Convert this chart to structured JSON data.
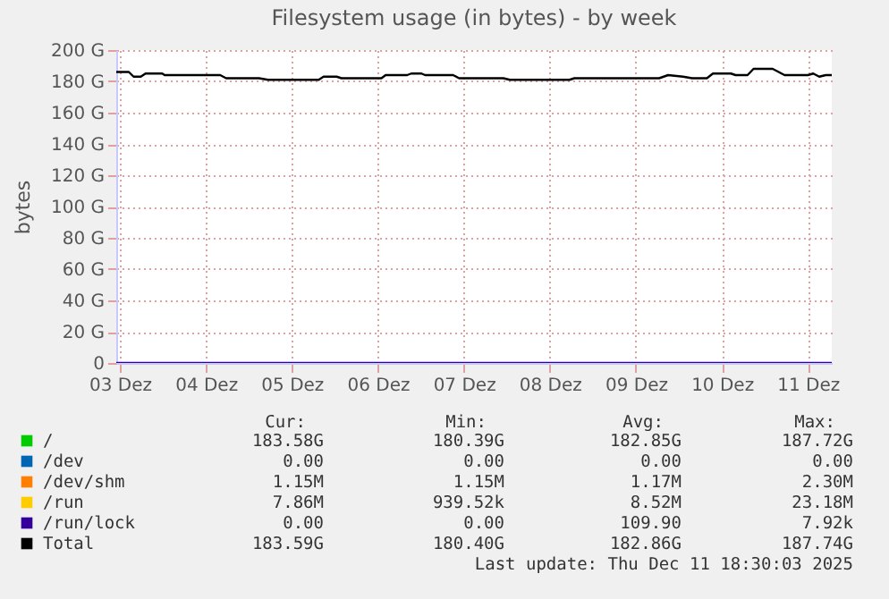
{
  "chart_data": {
    "type": "line",
    "title": "Filesystem usage (in bytes) - by week",
    "ylabel": "bytes",
    "x": [
      "2025-12-02T23:00",
      "2025-12-03T02:30",
      "2025-12-03T03:50",
      "2025-12-03T05:50",
      "2025-12-03T07:10",
      "2025-12-03T11:50",
      "2025-12-03T12:30",
      "2025-12-03T18:50",
      "2025-12-03T20:30",
      "2025-12-04T04:00",
      "2025-12-04T05:40",
      "2025-12-04T14:50",
      "2025-12-04T17:20",
      "2025-12-05T07:30",
      "2025-12-05T08:50",
      "2025-12-05T12:30",
      "2025-12-05T13:50",
      "2025-12-06T01:00",
      "2025-12-06T02:10",
      "2025-12-06T08:10",
      "2025-12-06T09:20",
      "2025-12-06T12:10",
      "2025-12-06T13:10",
      "2025-12-06T21:00",
      "2025-12-06T22:40",
      "2025-12-07T11:00",
      "2025-12-07T12:50",
      "2025-12-08T05:30",
      "2025-12-08T06:50",
      "2025-12-09T06:30",
      "2025-12-09T09:00",
      "2025-12-09T13:10",
      "2025-12-09T15:40",
      "2025-12-09T19:50",
      "2025-12-09T21:30",
      "2025-12-10T02:30",
      "2025-12-10T03:50",
      "2025-12-10T07:10",
      "2025-12-10T08:50",
      "2025-12-10T14:10",
      "2025-12-10T17:30",
      "2025-12-11T00:00",
      "2025-12-11T01:30",
      "2025-12-11T03:10",
      "2025-12-11T05:00",
      "2025-12-11T06:40"
    ],
    "series": [
      {
        "name": "/",
        "color": "#00cc00",
        "values": [
          null,
          null,
          null,
          null,
          null,
          null,
          null,
          null,
          null,
          null,
          null,
          null,
          null,
          null,
          null,
          null,
          null,
          null,
          null,
          null,
          null,
          null,
          null,
          null,
          null,
          null,
          null,
          null,
          null,
          null,
          null,
          null,
          null,
          null,
          null,
          null,
          null,
          null,
          null,
          null,
          null,
          null,
          null,
          null,
          null,
          null
        ]
      },
      {
        "name": "/dev",
        "color": "#0066b3",
        "values": [
          null,
          null,
          null,
          null,
          null,
          null,
          null,
          null,
          null,
          null,
          null,
          null,
          null,
          null,
          null,
          null,
          null,
          null,
          null,
          null,
          null,
          null,
          null,
          null,
          null,
          null,
          null,
          null,
          null,
          null,
          null,
          null,
          null,
          null,
          null,
          null,
          null,
          null,
          null,
          null,
          null,
          null,
          null,
          null,
          null,
          null
        ]
      },
      {
        "name": "/dev/shm",
        "color": "#ff8000",
        "values": [
          null,
          null,
          null,
          null,
          null,
          null,
          null,
          null,
          null,
          null,
          null,
          null,
          null,
          null,
          null,
          null,
          null,
          null,
          null,
          null,
          null,
          null,
          null,
          null,
          null,
          null,
          null,
          null,
          null,
          null,
          null,
          null,
          null,
          null,
          null,
          null,
          null,
          null,
          null,
          null,
          null,
          null,
          null,
          null,
          null,
          null
        ]
      },
      {
        "name": "/run",
        "color": "#ffcc00",
        "values": [
          null,
          null,
          null,
          null,
          null,
          null,
          null,
          null,
          null,
          null,
          null,
          null,
          null,
          null,
          null,
          null,
          null,
          null,
          null,
          null,
          null,
          null,
          null,
          null,
          null,
          null,
          null,
          null,
          null,
          null,
          null,
          null,
          null,
          null,
          null,
          null,
          null,
          null,
          null,
          null,
          null,
          null,
          null,
          null,
          null,
          null
        ]
      },
      {
        "name": "/run/lock",
        "color": "#330099",
        "x": [
          "2025-12-02T23:00",
          "2025-12-11T06:40"
        ],
        "values": [
          0,
          0
        ]
      },
      {
        "name": "Total",
        "color": "#000000",
        "values": [
          186,
          186,
          183,
          183,
          185,
          185,
          184,
          184,
          184,
          184,
          182,
          182,
          181,
          181,
          183,
          183,
          182,
          182,
          184,
          184,
          185,
          185,
          184,
          184,
          182,
          182,
          181,
          181,
          182,
          182,
          184,
          183,
          182,
          182,
          185,
          185,
          184,
          184,
          188,
          188,
          184,
          184,
          185,
          183,
          184,
          184
        ]
      }
    ],
    "xlim": [
      "2025-12-02T23:00",
      "2025-12-11T06:40"
    ],
    "xticks": [
      {
        "value": "2025-12-03T00:00",
        "label": "03 Dez"
      },
      {
        "value": "2025-12-04T00:00",
        "label": "04 Dez"
      },
      {
        "value": "2025-12-05T00:00",
        "label": "05 Dez"
      },
      {
        "value": "2025-12-06T00:00",
        "label": "06 Dez"
      },
      {
        "value": "2025-12-07T00:00",
        "label": "07 Dez"
      },
      {
        "value": "2025-12-08T00:00",
        "label": "08 Dez"
      },
      {
        "value": "2025-12-09T00:00",
        "label": "09 Dez"
      },
      {
        "value": "2025-12-10T00:00",
        "label": "10 Dez"
      },
      {
        "value": "2025-12-11T00:00",
        "label": "11 Dez"
      }
    ],
    "ylim": [
      0,
      200
    ],
    "yticks": [
      0,
      {
        "value": 20,
        "label": "20 G"
      },
      {
        "value": 40,
        "label": "40 G"
      },
      {
        "value": 60,
        "label": "60 G"
      },
      {
        "value": 80,
        "label": "80 G"
      },
      {
        "value": 100,
        "label": "100 G"
      },
      {
        "value": 120,
        "label": "120 G"
      },
      {
        "value": 140,
        "label": "140 G"
      },
      {
        "value": 160,
        "label": "160 G"
      },
      {
        "value": 180,
        "label": "180 G"
      },
      {
        "value": 200,
        "label": "200 G"
      }
    ],
    "grid": true,
    "legend": "bottom",
    "annotations": [
      "Cur:",
      "Min:",
      "Avg:",
      "Max:",
      "183.58G",
      "180.39G",
      "182.85G",
      "187.72G",
      "0.00",
      "0.00",
      "0.00",
      "0.00",
      "1.15M",
      "1.15M",
      "1.17M",
      "2.30M",
      "7.86M",
      "939.52k",
      "8.52M",
      "23.18M",
      "0.00",
      "0.00",
      "109.90",
      "7.92k",
      "183.59G",
      "180.40G",
      "182.86G",
      "187.74G",
      "Last update: Thu Dec 11 18:30:03 2025"
    ]
  }
}
